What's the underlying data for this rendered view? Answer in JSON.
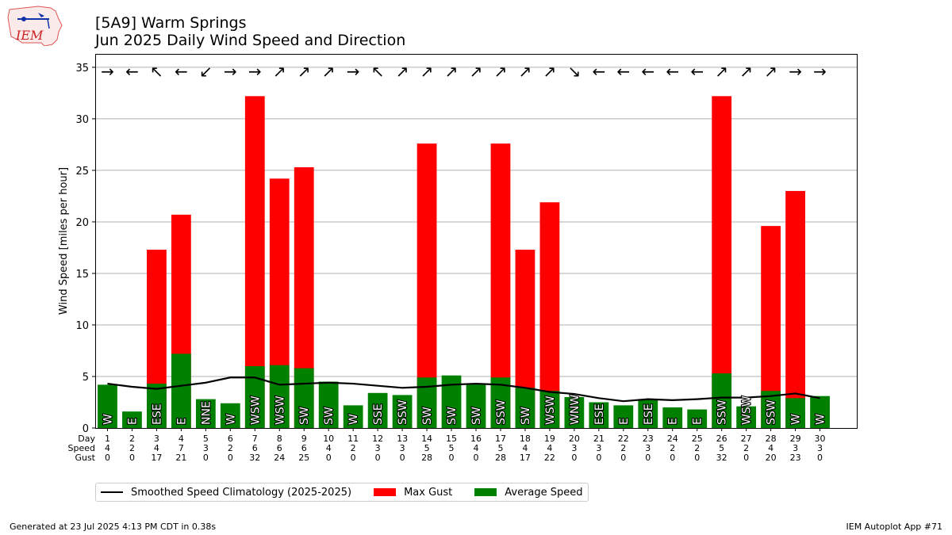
{
  "header": {
    "title_line1": "[5A9] Warm Springs",
    "title_line2": "Jun 2025 Daily Wind Speed and Direction"
  },
  "logo": {
    "text": "IEM"
  },
  "footer": {
    "left": "Generated at 23 Jul 2025 4:13 PM CDT in 0.38s",
    "right": "IEM Autoplot App #71"
  },
  "row_labels": {
    "day": "Day",
    "speed": "Speed",
    "gust": "Gust"
  },
  "legend": {
    "climatology": "Smoothed Speed Climatology (2025-2025)",
    "gust": "Max Gust",
    "average": "Average Speed"
  },
  "colors": {
    "gust": "#ff0000",
    "average": "#008000",
    "climatology": "#000000"
  },
  "chart_data": {
    "type": "bar",
    "ylabel": "Wind Speed [miles per hour]",
    "ylim": [
      0,
      36.3
    ],
    "yticks": [
      0,
      5,
      10,
      15,
      20,
      25,
      30,
      35
    ],
    "grid": true,
    "legend_position": "bottom",
    "days": [
      1,
      2,
      3,
      4,
      5,
      6,
      7,
      8,
      9,
      10,
      11,
      12,
      13,
      14,
      15,
      16,
      17,
      18,
      19,
      20,
      21,
      22,
      23,
      24,
      25,
      26,
      27,
      28,
      29,
      30
    ],
    "speed_labels": [
      "4",
      "2",
      "4",
      "7",
      "3",
      "2",
      "6",
      "6",
      "6",
      "4",
      "2",
      "3",
      "3",
      "5",
      "5",
      "4",
      "5",
      "4",
      "4",
      "3",
      "3",
      "2",
      "3",
      "2",
      "2",
      "5",
      "2",
      "4",
      "3",
      "3"
    ],
    "gust_labels": [
      "0",
      "0",
      "17",
      "21",
      "0",
      "0",
      "32",
      "24",
      "25",
      "0",
      "0",
      "0",
      "0",
      "28",
      "0",
      "0",
      "28",
      "17",
      "22",
      "0",
      "0",
      "0",
      "0",
      "0",
      "0",
      "32",
      "0",
      "20",
      "23",
      "0"
    ],
    "average_speed": [
      4.2,
      1.6,
      4.3,
      7.2,
      2.8,
      2.4,
      6.0,
      6.1,
      5.8,
      4.5,
      2.2,
      3.4,
      3.2,
      4.9,
      5.1,
      4.3,
      4.9,
      3.9,
      3.6,
      3.0,
      2.5,
      2.2,
      2.8,
      2.0,
      1.8,
      5.3,
      2.1,
      3.6,
      2.9,
      3.1
    ],
    "max_gust": [
      0,
      0,
      17.3,
      20.7,
      0,
      0,
      32.2,
      24.2,
      25.3,
      0,
      0,
      0,
      0,
      27.6,
      0,
      0,
      27.6,
      17.3,
      21.9,
      0,
      0,
      0,
      0,
      0,
      0,
      32.2,
      0,
      19.6,
      23.0,
      0
    ],
    "climatology": [
      4.3,
      4.0,
      3.8,
      4.1,
      4.4,
      4.9,
      4.9,
      4.2,
      4.3,
      4.4,
      4.3,
      4.1,
      3.9,
      4.0,
      4.2,
      4.3,
      4.2,
      3.9,
      3.5,
      3.3,
      2.9,
      2.6,
      2.8,
      2.7,
      2.8,
      2.95,
      2.95,
      3.1,
      3.35,
      2.9
    ],
    "direction_labels": [
      "W",
      "E",
      "ESE",
      "E",
      "NNE",
      "W",
      "WSW",
      "WSW",
      "SW",
      "SW",
      "W",
      "SSE",
      "SSW",
      "SW",
      "SW",
      "SW",
      "SSW",
      "SW",
      "WSW",
      "WNW",
      "ESE",
      "E",
      "ESE",
      "E",
      "E",
      "SSW",
      "WSW",
      "SSW",
      "W",
      "W"
    ],
    "direction_arrows": [
      "→",
      "←",
      "↖",
      "←",
      "↙",
      "→",
      "→",
      "↗",
      "↗",
      "↗",
      "→",
      "↖",
      "↗",
      "↗",
      "↗",
      "↗",
      "↗",
      "↗",
      "↗",
      "↘",
      "←",
      "←",
      "←",
      "←",
      "←",
      "↗",
      "↗",
      "↗",
      "→",
      "→"
    ]
  }
}
